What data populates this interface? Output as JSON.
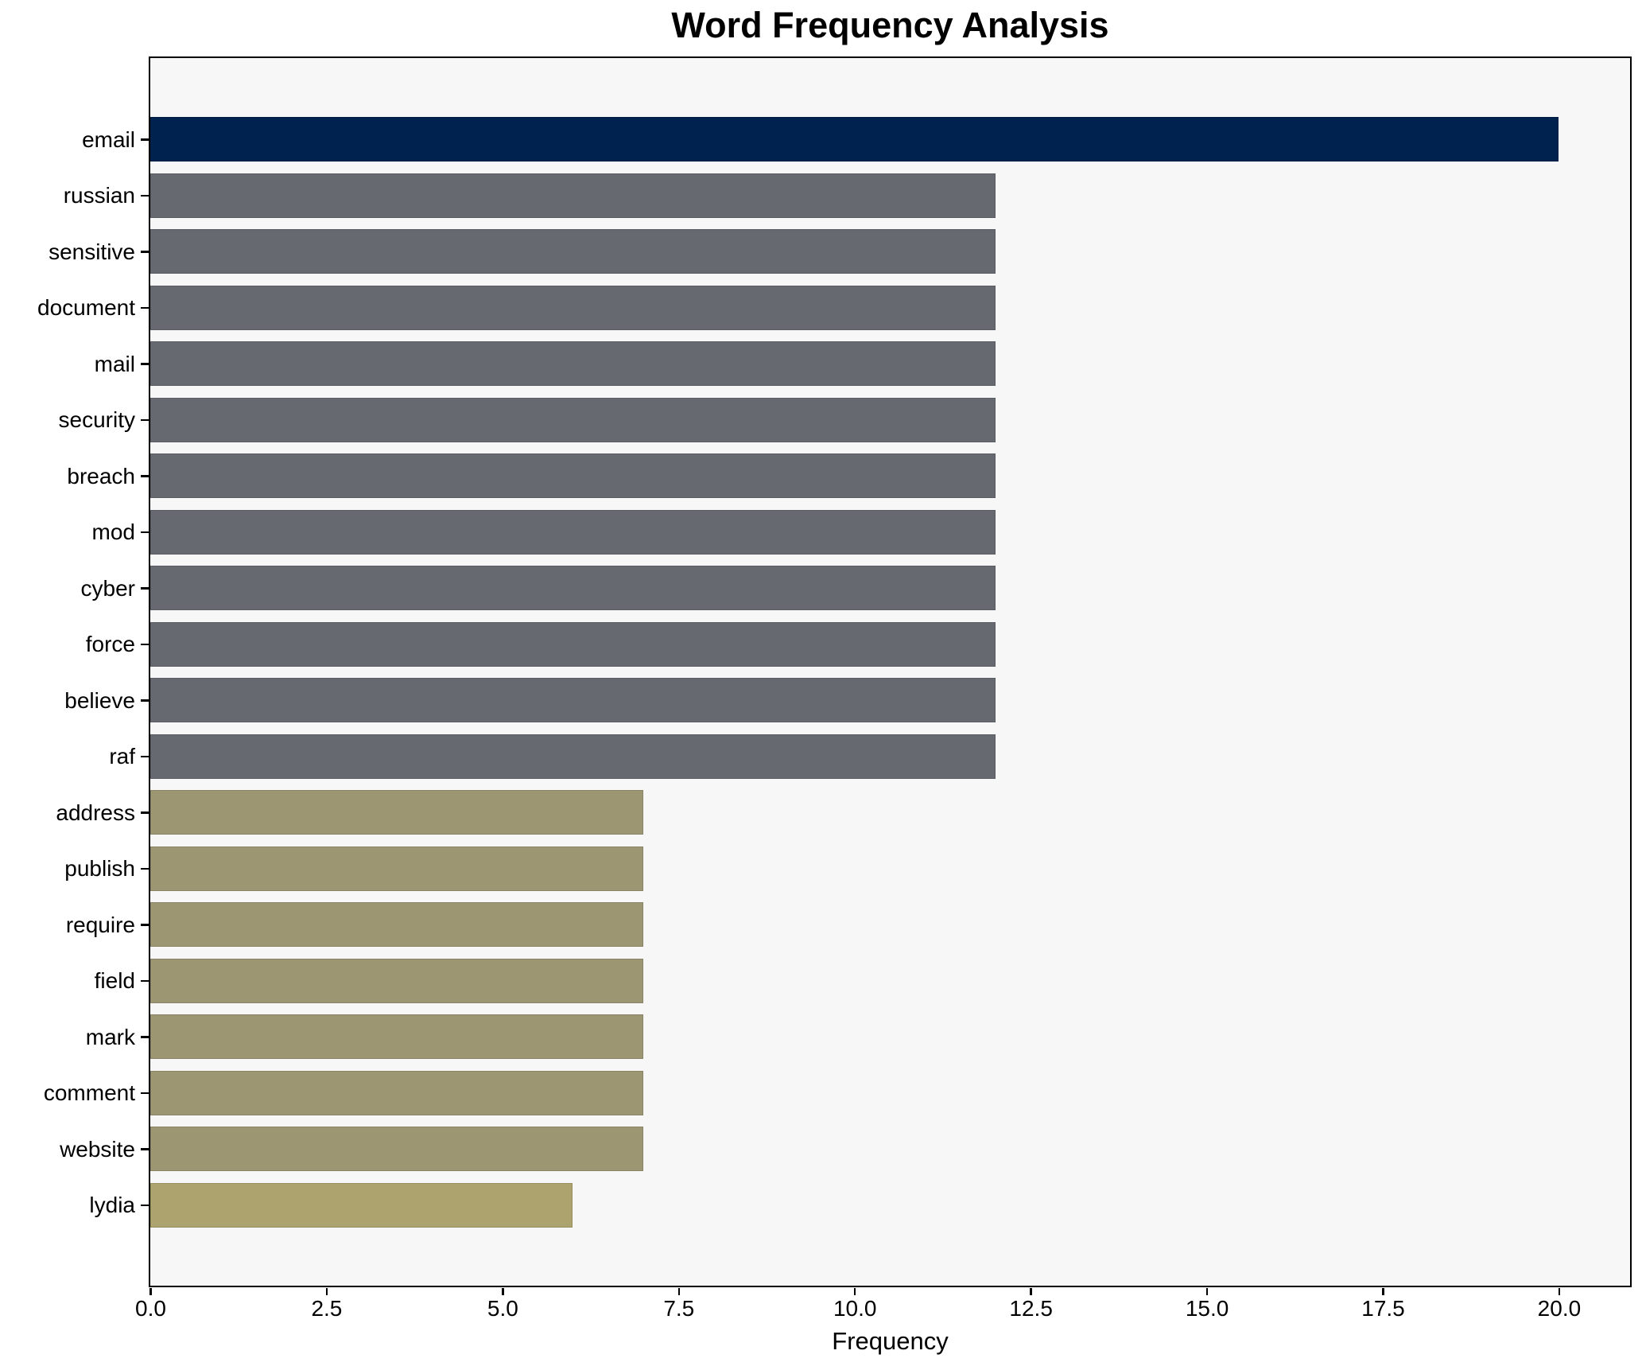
{
  "chart_data": {
    "type": "bar",
    "orientation": "horizontal",
    "title": "Word Frequency Analysis",
    "xlabel": "Frequency",
    "ylabel": "",
    "categories": [
      "email",
      "russian",
      "sensitive",
      "document",
      "mail",
      "security",
      "breach",
      "mod",
      "cyber",
      "force",
      "believe",
      "raf",
      "address",
      "publish",
      "require",
      "field",
      "mark",
      "comment",
      "website",
      "lydia"
    ],
    "values": [
      20,
      12,
      12,
      12,
      12,
      12,
      12,
      12,
      12,
      12,
      12,
      12,
      7,
      7,
      7,
      7,
      7,
      7,
      7,
      6
    ],
    "bar_colors": [
      "#00224e",
      "#666970",
      "#666970",
      "#666970",
      "#666970",
      "#666970",
      "#666970",
      "#666970",
      "#666970",
      "#666970",
      "#666970",
      "#666970",
      "#9d9673",
      "#9d9673",
      "#9d9673",
      "#9d9673",
      "#9d9673",
      "#9d9673",
      "#9d9673",
      "#aca36e"
    ],
    "xlim": [
      0,
      21
    ],
    "xticks": [
      0,
      2.5,
      5,
      7.5,
      10,
      12.5,
      15,
      17.5,
      20
    ],
    "xtick_labels": [
      "0.0",
      "2.5",
      "5.0",
      "7.5",
      "10.0",
      "12.5",
      "15.0",
      "17.5",
      "20.0"
    ],
    "grid": false,
    "legend": null,
    "accent_colors": {
      "highest_bar": "#00224e",
      "mid_bars": "#666970",
      "low_bars": "#9d9673",
      "lowest_bar": "#aca36e"
    },
    "plot_background": "#f7f7f7",
    "figure_background": "#ffffff",
    "spine_color": "#000000",
    "text_color": "#000000"
  }
}
